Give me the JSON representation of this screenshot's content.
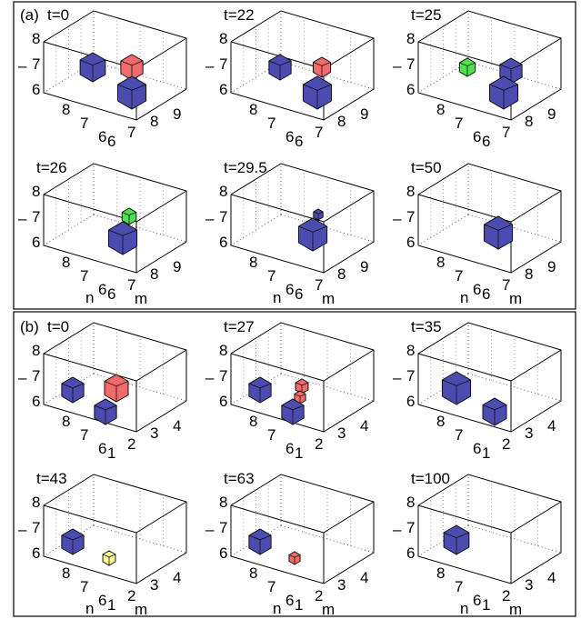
{
  "panels": [
    {
      "label": "(a)",
      "subplots": [
        {
          "title": "t=0",
          "z_label": "–",
          "z_ticks": [
            8,
            7,
            6
          ],
          "n_ticks": [
            8,
            7,
            6
          ],
          "m_ticks": [
            6,
            7,
            8,
            9
          ]
        },
        {
          "title": "t=22",
          "z_label": "–",
          "z_ticks": [
            8,
            7,
            6
          ],
          "n_ticks": [
            8,
            7,
            6
          ],
          "m_ticks": [
            6,
            7,
            8,
            9
          ]
        },
        {
          "title": "t=25",
          "z_label": "–",
          "z_ticks": [
            8,
            7,
            6
          ],
          "n_ticks": [
            8,
            7,
            6
          ],
          "m_ticks": [
            6,
            7,
            8,
            9
          ]
        },
        {
          "title": "t=26",
          "z_label": "–",
          "z_ticks": [
            8,
            7,
            6
          ],
          "n_ticks": [
            8,
            7,
            6
          ],
          "m_ticks": [
            6,
            7,
            8,
            9
          ],
          "n_label": "n",
          "m_label": "m"
        },
        {
          "title": "t=29.5",
          "z_label": "–",
          "z_ticks": [
            8,
            7,
            6
          ],
          "n_ticks": [
            8,
            7,
            6
          ],
          "m_ticks": [
            6,
            7,
            8,
            9
          ],
          "n_label": "n",
          "m_label": "m"
        },
        {
          "title": "t=50",
          "z_label": "–",
          "z_ticks": [
            8,
            7,
            6
          ],
          "n_ticks": [
            8,
            7,
            6
          ],
          "m_ticks": [
            6,
            7,
            8,
            9
          ],
          "n_label": "n",
          "m_label": "m"
        }
      ]
    },
    {
      "label": "(b)",
      "subplots": [
        {
          "title": "t=0",
          "z_label": "–",
          "z_ticks": [
            8,
            7,
            6
          ],
          "n_ticks": [
            8,
            7,
            6
          ],
          "m_ticks": [
            1,
            2,
            3,
            4
          ]
        },
        {
          "title": "t=27",
          "z_label": "–",
          "z_ticks": [
            8,
            7,
            6
          ],
          "n_ticks": [
            8,
            7,
            6
          ],
          "m_ticks": [
            1,
            2,
            3,
            4
          ]
        },
        {
          "title": "t=35",
          "z_label": "–",
          "z_ticks": [
            8,
            7,
            6
          ],
          "n_ticks": [
            8,
            7,
            6
          ],
          "m_ticks": [
            1,
            2,
            3,
            4
          ]
        },
        {
          "title": "t=43",
          "z_label": "–",
          "z_ticks": [
            8,
            7,
            6
          ],
          "n_ticks": [
            8,
            7,
            6
          ],
          "m_ticks": [
            1,
            2,
            3,
            4
          ],
          "n_label": "n",
          "m_label": "m"
        },
        {
          "title": "t=63",
          "z_label": "–",
          "z_ticks": [
            8,
            7,
            6
          ],
          "n_ticks": [
            8,
            7,
            6
          ],
          "m_ticks": [
            1,
            2,
            3,
            4
          ],
          "n_label": "n",
          "m_label": "m"
        },
        {
          "title": "t=100",
          "z_label": "–",
          "z_ticks": [
            8,
            7,
            6
          ],
          "n_ticks": [
            8,
            7,
            6
          ],
          "m_ticks": [
            1,
            2,
            3,
            4
          ],
          "n_label": "n",
          "m_label": "m"
        }
      ]
    }
  ]
}
